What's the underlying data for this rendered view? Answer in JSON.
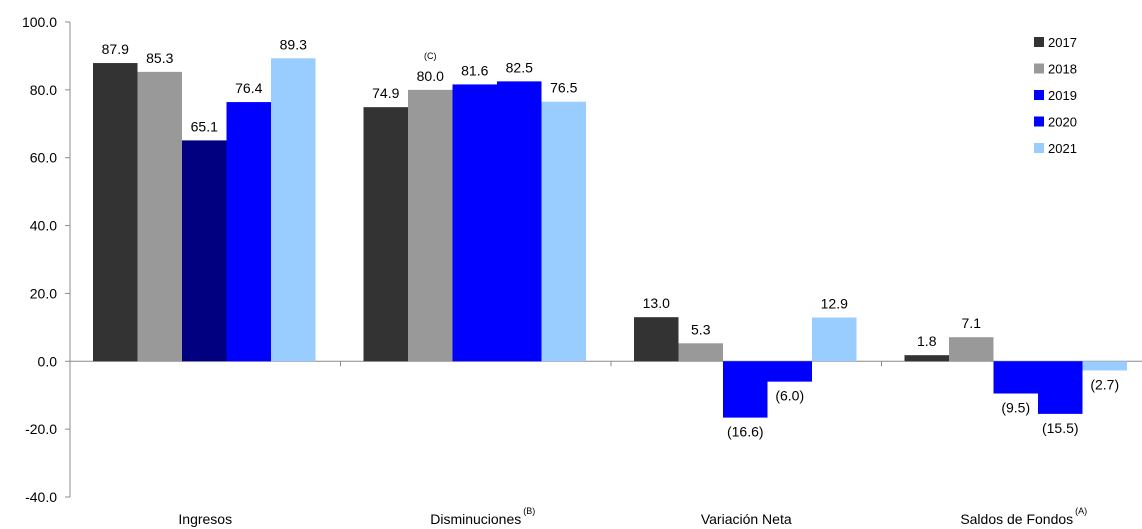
{
  "chart_data": {
    "type": "bar",
    "categories": [
      "Ingresos",
      "Disminuciones",
      "Variación Neta",
      "Saldos de Fondos"
    ],
    "category_notes": [
      "",
      "(B)",
      "",
      "(A)"
    ],
    "series": [
      {
        "name": "2017",
        "color": "#333333",
        "values": [
          87.9,
          74.9,
          13.0,
          1.8
        ],
        "labels": [
          "87.9",
          "74.9",
          "13.0",
          "1.8"
        ]
      },
      {
        "name": "2018",
        "color": "#999999",
        "values": [
          85.3,
          80.0,
          5.3,
          7.1
        ],
        "labels": [
          "85.3",
          "80.0",
          "5.3",
          "7.1"
        ]
      },
      {
        "name": "2019",
        "color": "#0000FF",
        "values": [
          65.1,
          81.6,
          -16.6,
          -9.5
        ],
        "labels": [
          "65.1",
          "81.6",
          "(16.6)",
          "(9.5)"
        ],
        "point_colors": [
          "#000080",
          "#0000FF",
          "#0000FF",
          "#0000FF"
        ]
      },
      {
        "name": "2020",
        "color": "#0000FF",
        "values": [
          76.4,
          82.5,
          -6.0,
          -15.5
        ],
        "labels": [
          "76.4",
          "82.5",
          "(6.0)",
          "(15.5)"
        ]
      },
      {
        "name": "2021",
        "color": "#99CCFF",
        "values": [
          89.3,
          76.5,
          12.9,
          -2.7
        ],
        "labels": [
          "89.3",
          "76.5",
          "12.9",
          "(2.7)"
        ]
      }
    ],
    "annotations": [
      {
        "text": "(C)",
        "category": "Disminuciones",
        "series": "2018"
      }
    ],
    "ylim": [
      -40,
      100
    ],
    "yticks": [
      -40,
      -20,
      0,
      20,
      40,
      60,
      80,
      100
    ],
    "ytick_labels": [
      "-40.0",
      "-20.0",
      "0.0",
      "20.0",
      "40.0",
      "60.0",
      "80.0",
      "100.0"
    ],
    "title": "",
    "xlabel": "",
    "ylabel": "",
    "legend_position": "top-right",
    "grid": false
  }
}
